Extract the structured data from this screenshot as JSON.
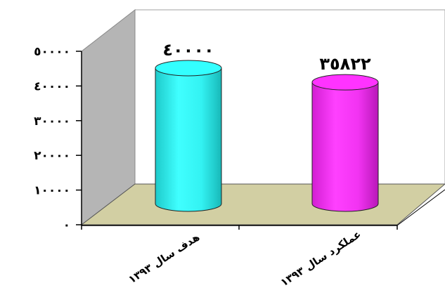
{
  "chart_data": {
    "type": "bar",
    "categories": [
      "هدف سال ۱۳۹۳",
      "عملکرد سال ۱۳۹۳"
    ],
    "values": [
      40000,
      35822
    ],
    "value_labels": [
      "٤٠٠٠٠",
      "٣٥٨٢٢"
    ],
    "ylim": [
      0,
      50000
    ],
    "yticks": [
      0,
      10000,
      20000,
      30000,
      40000,
      50000
    ],
    "ytick_labels": [
      "٠",
      "١٠٠٠٠",
      "٢٠٠٠٠",
      "٣٠٠٠٠",
      "٤٠٠٠٠",
      "٥٠٠٠٠"
    ],
    "title": "",
    "xlabel": "",
    "ylabel": "",
    "grid": false,
    "legend": "none",
    "colors": [
      "#33ffff",
      "#ff33ff"
    ],
    "style": "3d-cylinder"
  }
}
